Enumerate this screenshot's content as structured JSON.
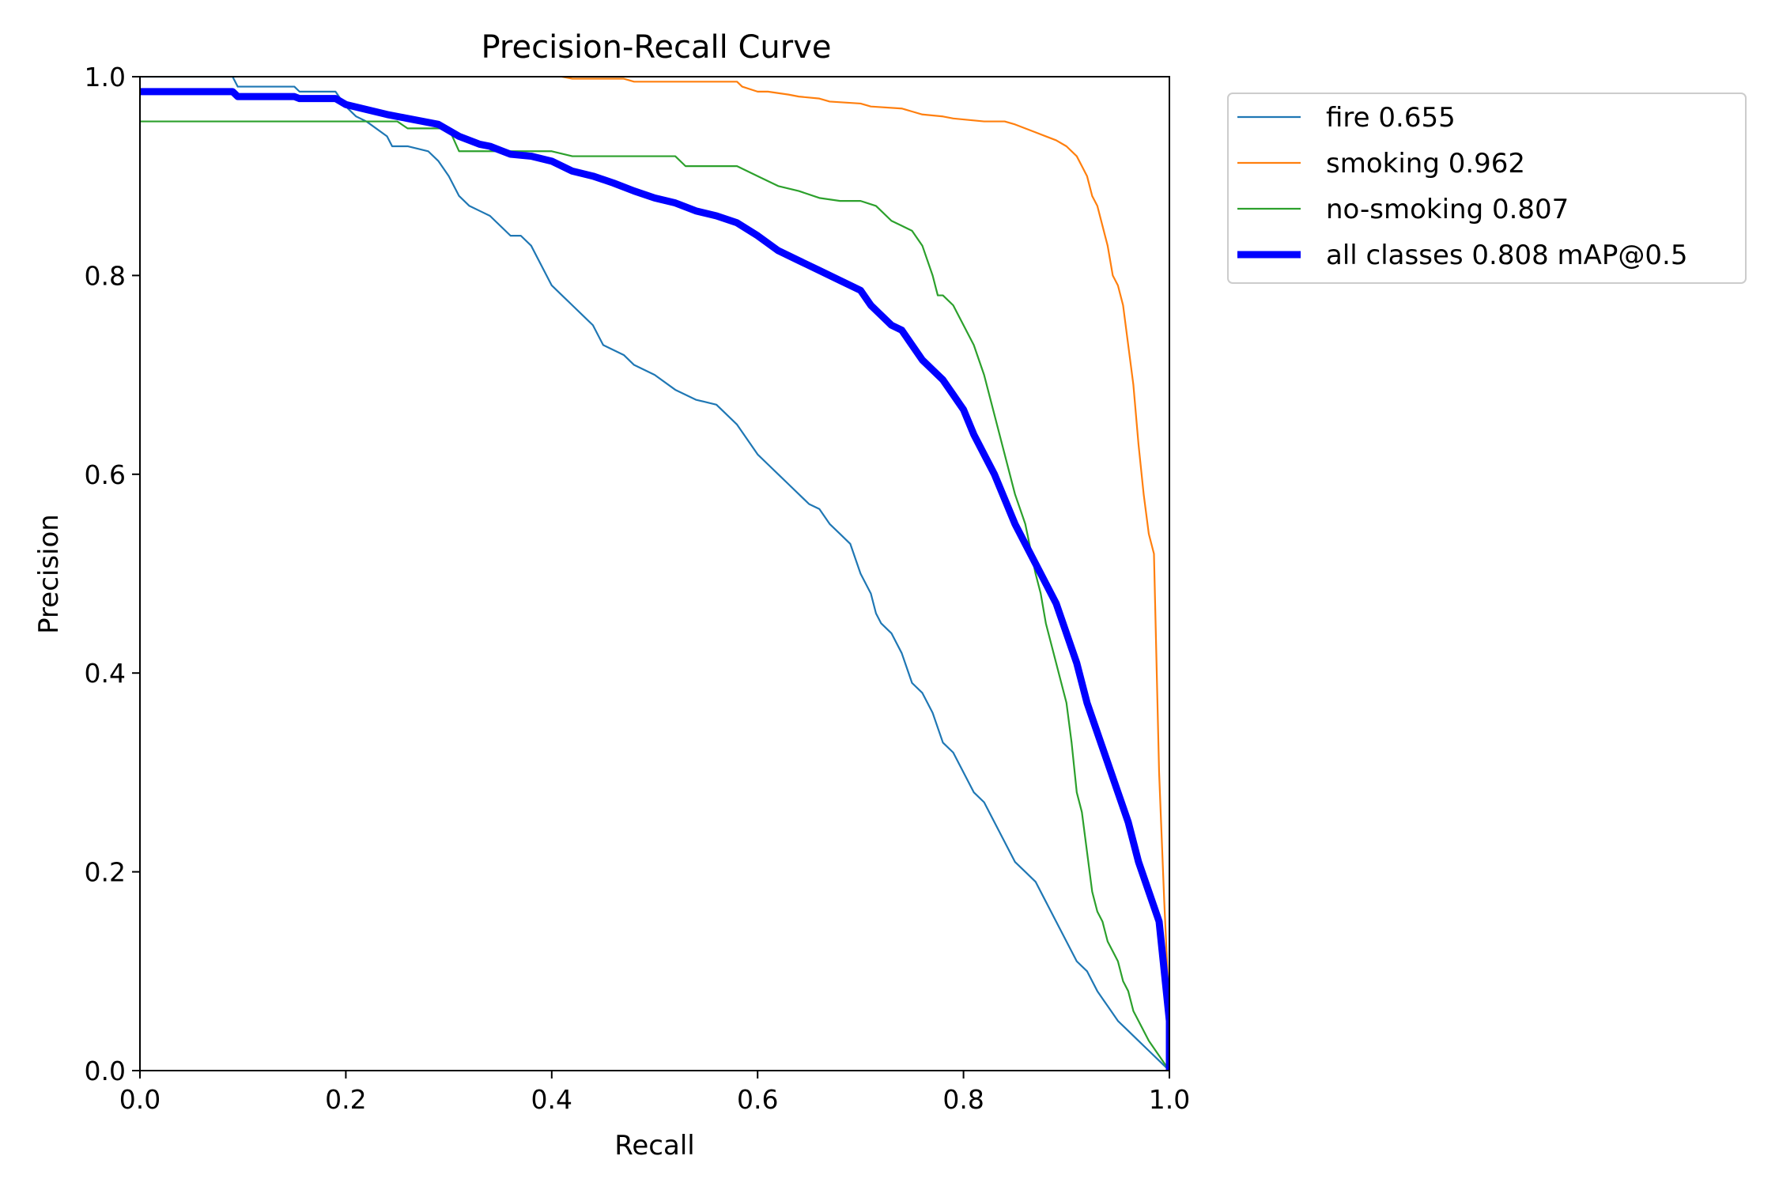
{
  "chart_data": {
    "type": "line",
    "title": "Precision-Recall Curve",
    "xlabel": "Recall",
    "ylabel": "Precision",
    "xlim": [
      0,
      1
    ],
    "ylim": [
      0,
      1
    ],
    "xticks": [
      "0.0",
      "0.2",
      "0.4",
      "0.6",
      "0.8",
      "1.0"
    ],
    "yticks": [
      "0.0",
      "0.2",
      "0.4",
      "0.6",
      "0.8",
      "1.0"
    ],
    "grid": false,
    "legend_position": "outside-top-right",
    "series": [
      {
        "name": "fire 0.655",
        "color": "#1f77b4",
        "bold": false,
        "x": [
          0,
          0.09,
          0.095,
          0.15,
          0.155,
          0.19,
          0.2,
          0.21,
          0.22,
          0.24,
          0.245,
          0.26,
          0.28,
          0.29,
          0.3,
          0.31,
          0.32,
          0.33,
          0.34,
          0.36,
          0.37,
          0.38,
          0.39,
          0.4,
          0.41,
          0.42,
          0.43,
          0.44,
          0.45,
          0.47,
          0.48,
          0.5,
          0.52,
          0.54,
          0.56,
          0.58,
          0.6,
          0.61,
          0.62,
          0.63,
          0.64,
          0.65,
          0.66,
          0.67,
          0.68,
          0.69,
          0.7,
          0.71,
          0.715,
          0.72,
          0.73,
          0.74,
          0.75,
          0.76,
          0.77,
          0.78,
          0.79,
          0.8,
          0.81,
          0.82,
          0.83,
          0.84,
          0.85,
          0.86,
          0.87,
          0.88,
          0.89,
          0.9,
          0.91,
          0.92,
          0.93,
          0.94,
          0.95,
          0.96,
          0.97,
          0.98,
          0.99,
          1.0
        ],
        "y": [
          1.0,
          1.0,
          0.99,
          0.99,
          0.985,
          0.985,
          0.97,
          0.96,
          0.955,
          0.94,
          0.93,
          0.93,
          0.925,
          0.915,
          0.9,
          0.88,
          0.87,
          0.865,
          0.86,
          0.84,
          0.84,
          0.83,
          0.81,
          0.79,
          0.78,
          0.77,
          0.76,
          0.75,
          0.73,
          0.72,
          0.71,
          0.7,
          0.685,
          0.675,
          0.67,
          0.65,
          0.62,
          0.61,
          0.6,
          0.59,
          0.58,
          0.57,
          0.565,
          0.55,
          0.54,
          0.53,
          0.5,
          0.48,
          0.46,
          0.45,
          0.44,
          0.42,
          0.39,
          0.38,
          0.36,
          0.33,
          0.32,
          0.3,
          0.28,
          0.27,
          0.25,
          0.23,
          0.21,
          0.2,
          0.19,
          0.17,
          0.15,
          0.13,
          0.11,
          0.1,
          0.08,
          0.065,
          0.05,
          0.04,
          0.03,
          0.02,
          0.01,
          0.0
        ]
      },
      {
        "name": "smoking 0.962",
        "color": "#ff7f0e",
        "bold": false,
        "x": [
          0.41,
          0.42,
          0.47,
          0.48,
          0.58,
          0.585,
          0.6,
          0.61,
          0.63,
          0.64,
          0.66,
          0.67,
          0.7,
          0.71,
          0.74,
          0.75,
          0.76,
          0.78,
          0.79,
          0.8,
          0.81,
          0.82,
          0.84,
          0.85,
          0.86,
          0.87,
          0.88,
          0.89,
          0.9,
          0.91,
          0.915,
          0.92,
          0.925,
          0.93,
          0.935,
          0.94,
          0.945,
          0.95,
          0.955,
          0.96,
          0.965,
          0.97,
          0.975,
          0.98,
          0.985,
          0.99,
          0.995,
          0.999,
          1.0
        ],
        "y": [
          1.0,
          0.998,
          0.998,
          0.995,
          0.995,
          0.99,
          0.985,
          0.985,
          0.982,
          0.98,
          0.978,
          0.975,
          0.973,
          0.97,
          0.968,
          0.965,
          0.962,
          0.96,
          0.958,
          0.957,
          0.956,
          0.955,
          0.955,
          0.952,
          0.948,
          0.944,
          0.94,
          0.936,
          0.93,
          0.92,
          0.91,
          0.9,
          0.88,
          0.87,
          0.85,
          0.83,
          0.8,
          0.79,
          0.77,
          0.73,
          0.69,
          0.63,
          0.58,
          0.54,
          0.52,
          0.3,
          0.17,
          0.08,
          0.0
        ]
      },
      {
        "name": "no-smoking 0.807",
        "color": "#2ca02c",
        "bold": false,
        "x": [
          0,
          0.21,
          0.22,
          0.25,
          0.26,
          0.3,
          0.31,
          0.4,
          0.42,
          0.52,
          0.53,
          0.58,
          0.6,
          0.61,
          0.62,
          0.64,
          0.66,
          0.68,
          0.7,
          0.715,
          0.72,
          0.73,
          0.74,
          0.75,
          0.76,
          0.77,
          0.775,
          0.78,
          0.79,
          0.8,
          0.81,
          0.82,
          0.825,
          0.83,
          0.84,
          0.85,
          0.86,
          0.87,
          0.875,
          0.88,
          0.885,
          0.89,
          0.895,
          0.9,
          0.905,
          0.91,
          0.915,
          0.92,
          0.925,
          0.93,
          0.935,
          0.94,
          0.945,
          0.95,
          0.955,
          0.96,
          0.965,
          0.97,
          0.98,
          0.99,
          1.0
        ],
        "y": [
          0.955,
          0.955,
          0.955,
          0.955,
          0.948,
          0.948,
          0.925,
          0.925,
          0.92,
          0.92,
          0.91,
          0.91,
          0.9,
          0.895,
          0.89,
          0.885,
          0.878,
          0.875,
          0.875,
          0.87,
          0.865,
          0.855,
          0.85,
          0.845,
          0.83,
          0.8,
          0.78,
          0.78,
          0.77,
          0.75,
          0.73,
          0.7,
          0.68,
          0.66,
          0.62,
          0.58,
          0.55,
          0.5,
          0.48,
          0.45,
          0.43,
          0.41,
          0.39,
          0.37,
          0.33,
          0.28,
          0.26,
          0.22,
          0.18,
          0.16,
          0.15,
          0.13,
          0.12,
          0.11,
          0.09,
          0.08,
          0.06,
          0.05,
          0.03,
          0.015,
          0.0
        ]
      },
      {
        "name": "all classes 0.808 mAP@0.5",
        "color": "#0000ff",
        "bold": true,
        "x": [
          0,
          0.09,
          0.095,
          0.15,
          0.155,
          0.19,
          0.2,
          0.22,
          0.24,
          0.26,
          0.29,
          0.31,
          0.33,
          0.34,
          0.36,
          0.38,
          0.4,
          0.42,
          0.44,
          0.46,
          0.48,
          0.5,
          0.52,
          0.54,
          0.56,
          0.58,
          0.6,
          0.62,
          0.64,
          0.66,
          0.68,
          0.7,
          0.71,
          0.72,
          0.73,
          0.74,
          0.75,
          0.76,
          0.77,
          0.78,
          0.79,
          0.8,
          0.81,
          0.82,
          0.83,
          0.84,
          0.85,
          0.86,
          0.87,
          0.88,
          0.89,
          0.9,
          0.91,
          0.915,
          0.92,
          0.93,
          0.94,
          0.95,
          0.96,
          0.97,
          0.98,
          0.99,
          0.995,
          1.0,
          1.0
        ],
        "y": [
          0.985,
          0.985,
          0.98,
          0.98,
          0.978,
          0.978,
          0.972,
          0.967,
          0.962,
          0.958,
          0.952,
          0.94,
          0.932,
          0.93,
          0.922,
          0.92,
          0.915,
          0.905,
          0.9,
          0.893,
          0.885,
          0.878,
          0.873,
          0.865,
          0.86,
          0.853,
          0.84,
          0.825,
          0.815,
          0.805,
          0.795,
          0.785,
          0.77,
          0.76,
          0.75,
          0.745,
          0.73,
          0.715,
          0.705,
          0.695,
          0.68,
          0.665,
          0.64,
          0.62,
          0.6,
          0.575,
          0.55,
          0.53,
          0.51,
          0.49,
          0.47,
          0.44,
          0.41,
          0.39,
          0.37,
          0.34,
          0.31,
          0.28,
          0.25,
          0.21,
          0.18,
          0.15,
          0.1,
          0.05,
          0.0
        ]
      }
    ]
  }
}
